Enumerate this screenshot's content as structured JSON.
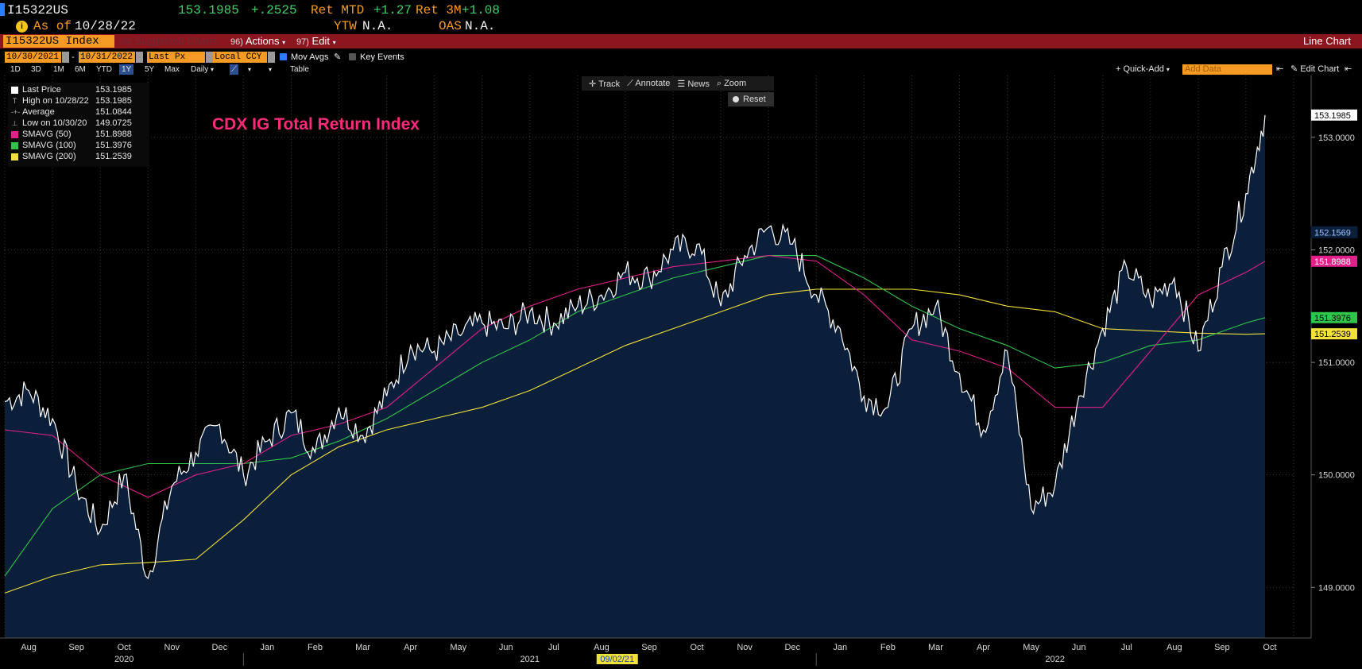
{
  "header": {
    "security": "I15322US",
    "last_price": "153.1985",
    "change": "+.2525",
    "ret_mtd_label": "Ret MTD",
    "ret_mtd_value": "+1.27",
    "ret_3m_label": "Ret 3M",
    "ret_3m_value": "+1.08",
    "as_of_label": "As of",
    "as_of_date": "10/28/22",
    "ytw_label": "YTW",
    "ytw_value": "N.A.",
    "oas_label": "OAS",
    "oas_value": "N.A."
  },
  "toolbar": {
    "security_box": "I15322US Index",
    "suggested_num": "95)",
    "suggested_label": "Suggested Charts",
    "actions_num": "96)",
    "actions_label": "Actions",
    "edit_num": "97)",
    "edit_label": "Edit",
    "chart_type": "Line Chart"
  },
  "controls": {
    "start_date": "10/30/2021",
    "end_date": "10/31/2022",
    "date_sep": "-",
    "field": "Last Px",
    "currency": "Local CCY",
    "mov_avgs": "Mov Avgs",
    "key_events": "Key Events",
    "periods": [
      "1D",
      "3D",
      "1M",
      "6M",
      "YTD",
      "1Y",
      "5Y",
      "Max"
    ],
    "active_period": "1Y",
    "frequency": "Daily",
    "table": "Table",
    "quick_add": "+ Quick-Add",
    "add_data_placeholder": "Add Data",
    "edit_chart": "Edit Chart"
  },
  "overlay_tools": {
    "track": "Track",
    "annotate": "Annotate",
    "news": "News",
    "zoom": "Zoom",
    "reset": "Reset"
  },
  "legend": [
    {
      "name": "Last Price",
      "value": "153.1985",
      "glyph": "square",
      "color": "#ffffff"
    },
    {
      "name": "High on 10/28/22",
      "value": "153.1985",
      "glyph": "high"
    },
    {
      "name": "Average",
      "value": "151.0844",
      "glyph": "avg"
    },
    {
      "name": "Low on 10/30/20",
      "value": "149.0725",
      "glyph": "low"
    },
    {
      "name": "SMAVG (50)",
      "value": "151.8988",
      "glyph": "square",
      "color": "#e0218a"
    },
    {
      "name": "SMAVG (100)",
      "value": "151.3976",
      "glyph": "square",
      "color": "#2fc44a"
    },
    {
      "name": "SMAVG (200)",
      "value": "151.2539",
      "glyph": "square",
      "color": "#f2e13a"
    }
  ],
  "chart_data": {
    "type": "area",
    "title": "CDX IG Total Return Index",
    "x_axis": {
      "months": [
        "Aug",
        "Sep",
        "Oct",
        "Nov",
        "Dec",
        "Jan",
        "Feb",
        "Mar",
        "Apr",
        "May",
        "Jun",
        "Jul",
        "Aug",
        "Sep",
        "Oct",
        "Nov",
        "Dec",
        "Jan",
        "Feb",
        "Mar",
        "Apr",
        "May",
        "Jun",
        "Jul",
        "Aug",
        "Sep",
        "Oct"
      ],
      "years": [
        "2020",
        "2021",
        "2022"
      ],
      "highlight_date": "09/02/21"
    },
    "y_axis": {
      "ticks": [
        "149.0000",
        "150.0000",
        "151.0000",
        "152.0000",
        "153.0000"
      ],
      "ylim": [
        148.55,
        153.55
      ],
      "grid": true
    },
    "series": [
      {
        "name": "Last Price",
        "color": "#ffffff",
        "x": [
          0,
          0.5,
          1,
          1.5,
          2,
          2.5,
          3,
          3.5,
          4,
          4.5,
          5,
          5.5,
          6,
          6.5,
          7,
          7.5,
          8,
          8.5,
          9,
          9.5,
          10,
          10.5,
          11,
          11.5,
          12,
          12.5,
          13,
          13.5,
          14,
          14.5,
          15,
          15.5,
          16,
          16.5,
          17,
          17.5,
          18,
          18.5,
          19,
          19.5,
          20,
          20.5,
          21,
          21.5,
          22,
          22.5,
          23,
          23.5,
          24,
          24.5,
          25,
          25.5,
          26,
          26.4
        ],
        "values": [
          150.65,
          150.75,
          150.5,
          149.9,
          149.5,
          150.0,
          149.08,
          149.9,
          150.2,
          150.45,
          150.0,
          150.3,
          150.55,
          150.2,
          150.6,
          150.35,
          150.7,
          151.15,
          151.1,
          151.25,
          151.35,
          151.3,
          151.45,
          151.35,
          151.5,
          151.6,
          151.8,
          151.75,
          152.0,
          152.05,
          151.5,
          151.95,
          152.2,
          152.05,
          151.6,
          151.3,
          150.7,
          150.6,
          151.3,
          151.5,
          150.9,
          150.4,
          151.1,
          149.7,
          149.9,
          150.7,
          151.3,
          151.85,
          151.55,
          151.75,
          151.1,
          151.85,
          152.5,
          153.1985
        ]
      },
      {
        "name": "SMAVG (50)",
        "color": "#e0218a",
        "x": [
          0,
          1,
          2,
          3,
          4,
          5,
          6,
          7,
          8,
          9,
          10,
          11,
          12,
          13,
          14,
          15,
          16,
          17,
          18,
          19,
          20,
          21,
          22,
          23,
          24,
          25,
          26,
          26.4
        ],
        "values": [
          150.4,
          150.35,
          150.0,
          149.8,
          150.0,
          150.1,
          150.35,
          150.45,
          150.6,
          150.95,
          151.3,
          151.5,
          151.65,
          151.75,
          151.85,
          151.9,
          151.95,
          151.9,
          151.6,
          151.2,
          151.1,
          150.95,
          150.6,
          150.6,
          151.1,
          151.6,
          151.8,
          151.8988
        ]
      },
      {
        "name": "SMAVG (100)",
        "color": "#2fc44a",
        "x": [
          0,
          1,
          2,
          3,
          4,
          5,
          6,
          7,
          8,
          9,
          10,
          11,
          12,
          13,
          14,
          15,
          16,
          17,
          18,
          19,
          20,
          21,
          22,
          23,
          24,
          25,
          26,
          26.4
        ],
        "values": [
          149.1,
          149.7,
          150.0,
          150.1,
          150.1,
          150.1,
          150.15,
          150.3,
          150.5,
          150.75,
          151.0,
          151.2,
          151.45,
          151.6,
          151.75,
          151.85,
          151.95,
          151.95,
          151.75,
          151.5,
          151.3,
          151.15,
          150.95,
          151.0,
          151.15,
          151.2,
          151.35,
          151.3976
        ]
      },
      {
        "name": "SMAVG (200)",
        "color": "#f2e13a",
        "x": [
          0,
          1,
          2,
          3,
          4,
          5,
          6,
          7,
          8,
          9,
          10,
          11,
          12,
          13,
          14,
          15,
          16,
          17,
          18,
          19,
          20,
          21,
          22,
          23,
          24,
          25,
          26,
          26.4
        ],
        "values": [
          148.95,
          149.1,
          149.2,
          149.22,
          149.25,
          149.6,
          150.0,
          150.25,
          150.4,
          150.5,
          150.6,
          150.75,
          150.95,
          151.15,
          151.3,
          151.45,
          151.6,
          151.65,
          151.65,
          151.65,
          151.6,
          151.5,
          151.45,
          151.3,
          151.28,
          151.26,
          151.25,
          151.2539
        ]
      }
    ],
    "value_labels": [
      {
        "value": "153.1985",
        "y": 153.1985,
        "bg": "#ffffff",
        "fg": "#000000"
      },
      {
        "value": "152.1569",
        "y": 152.1569,
        "bg": "#0b1f3a",
        "fg": "#9ec3ff"
      },
      {
        "value": "151.8988",
        "y": 151.8988,
        "bg": "#e0218a",
        "fg": "#ffffff"
      },
      {
        "value": "151.3976",
        "y": 151.3976,
        "bg": "#2fc44a",
        "fg": "#000000"
      },
      {
        "value": "151.2539",
        "y": 151.2539,
        "bg": "#f2e13a",
        "fg": "#000000"
      }
    ],
    "area_fill": "#0b1f3a"
  }
}
